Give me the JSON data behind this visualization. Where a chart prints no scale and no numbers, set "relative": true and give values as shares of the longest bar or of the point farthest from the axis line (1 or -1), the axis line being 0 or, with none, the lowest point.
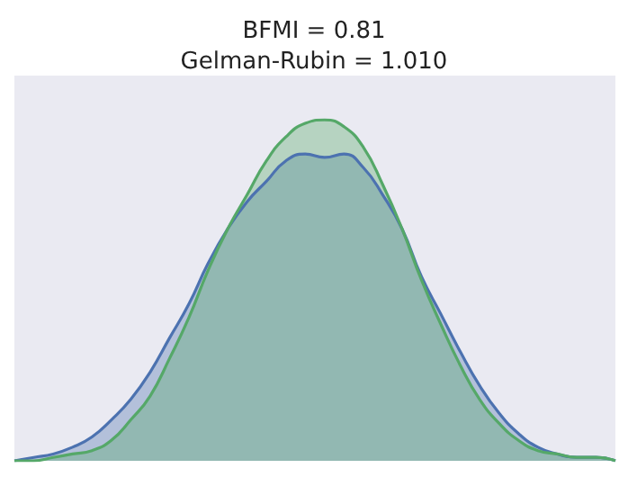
{
  "chart_data": {
    "type": "area",
    "title": "BFMI = 0.81\nGelman-Rubin = 1.010",
    "relative": true,
    "grid": false,
    "categories": [
      null,
      null,
      null,
      null,
      null,
      null,
      null,
      null,
      null,
      null,
      null,
      null,
      null,
      null,
      null,
      null,
      null,
      null,
      null,
      null,
      null,
      null,
      null,
      null,
      null,
      null,
      null,
      null,
      null,
      null,
      null,
      null
    ],
    "series": [
      {
        "color": "#4c72b0",
        "values": [
          0,
          0.01,
          0.02,
          0.04,
          0.07,
          0.12,
          0.18,
          0.26,
          0.36,
          0.46,
          0.58,
          0.68,
          0.76,
          0.82,
          0.88,
          0.9,
          0.89,
          0.9,
          0.86,
          0.78,
          0.68,
          0.54,
          0.43,
          0.32,
          0.22,
          0.14,
          0.08,
          0.04,
          0.02,
          0.01,
          0.01,
          0
        ]
      },
      {
        "color": "#55a868",
        "values": [
          0,
          0,
          0.01,
          0.02,
          0.03,
          0.06,
          0.12,
          0.19,
          0.3,
          0.42,
          0.56,
          0.68,
          0.78,
          0.88,
          0.95,
          0.99,
          1,
          0.98,
          0.92,
          0.81,
          0.68,
          0.53,
          0.4,
          0.28,
          0.18,
          0.11,
          0.06,
          0.03,
          0.02,
          0.01,
          0.01,
          0
        ]
      }
    ]
  }
}
